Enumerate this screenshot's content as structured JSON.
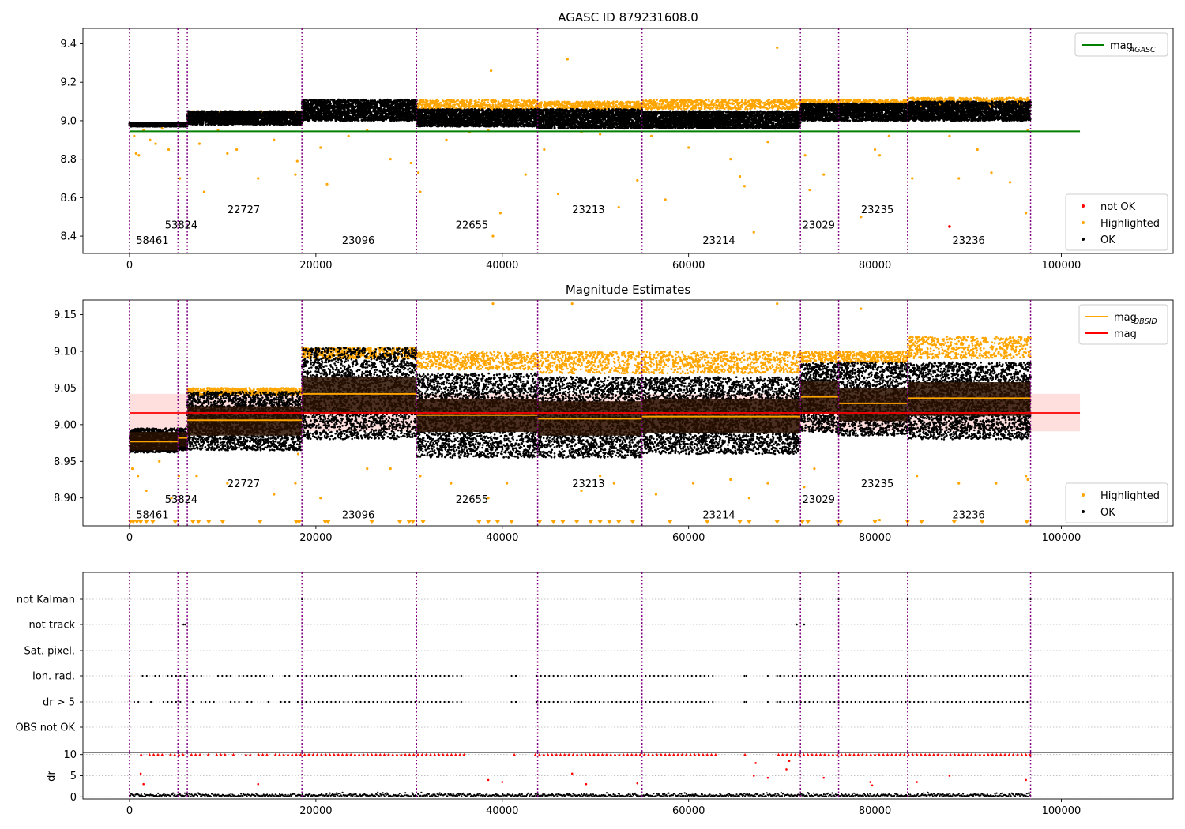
{
  "chart_data": [
    {
      "panel": "top",
      "type": "scatter",
      "title": "AGASC ID 879231608.0",
      "xlim": [
        -5000,
        112000
      ],
      "ylim": [
        8.31,
        9.48
      ],
      "xticks": [
        0,
        20000,
        40000,
        60000,
        80000,
        100000
      ],
      "yticks": [
        8.4,
        8.6,
        8.8,
        9.0,
        9.2,
        9.4
      ],
      "ytick_labels": [
        "8.4",
        "8.6",
        "8.8",
        "9.0",
        "9.2",
        "9.4"
      ],
      "mag_agasc": {
        "value": 8.945,
        "x_range": [
          0,
          102000
        ],
        "color": "#008000"
      },
      "legend_top": [
        {
          "label": "mag",
          "sub": "AGASC",
          "color": "#008000",
          "kind": "line"
        }
      ],
      "legend_bottom": [
        {
          "label": "not OK",
          "color": "#ff0000",
          "kind": "dot"
        },
        {
          "label": "Highlighted",
          "color": "#ffa500",
          "kind": "dot"
        },
        {
          "label": "OK",
          "color": "#000000",
          "kind": "dot"
        }
      ],
      "ok_band": [
        {
          "x0": 0,
          "x1": 5200,
          "lo": 8.97,
          "hi": 8.99
        },
        {
          "x0": 5200,
          "x1": 6200,
          "lo": 8.97,
          "hi": 8.99
        },
        {
          "x0": 6200,
          "x1": 18500,
          "lo": 8.98,
          "hi": 9.05
        },
        {
          "x0": 18500,
          "x1": 30800,
          "lo": 9.0,
          "hi": 9.11
        },
        {
          "x0": 30800,
          "x1": 43800,
          "lo": 8.97,
          "hi": 9.06
        },
        {
          "x0": 43800,
          "x1": 55000,
          "lo": 8.96,
          "hi": 9.06
        },
        {
          "x0": 55000,
          "x1": 72000,
          "lo": 8.96,
          "hi": 9.05
        },
        {
          "x0": 72000,
          "x1": 76100,
          "lo": 9.0,
          "hi": 9.09
        },
        {
          "x0": 76100,
          "x1": 83500,
          "lo": 9.0,
          "hi": 9.09
        },
        {
          "x0": 83500,
          "x1": 96700,
          "lo": 9.0,
          "hi": 9.1
        }
      ],
      "highlight_band": [
        {
          "x0": 6200,
          "x1": 18500,
          "lo": 9.02,
          "hi": 9.05
        },
        {
          "x0": 30800,
          "x1": 43800,
          "lo": 9.06,
          "hi": 9.11
        },
        {
          "x0": 43800,
          "x1": 55000,
          "lo": 9.06,
          "hi": 9.1
        },
        {
          "x0": 55000,
          "x1": 72000,
          "lo": 9.06,
          "hi": 9.11
        },
        {
          "x0": 72000,
          "x1": 83500,
          "lo": 9.07,
          "hi": 9.11
        },
        {
          "x0": 83500,
          "x1": 96700,
          "lo": 9.07,
          "hi": 9.12
        }
      ],
      "highlight_points": [
        [
          500,
          8.92
        ],
        [
          700,
          8.83
        ],
        [
          1000,
          8.82
        ],
        [
          1500,
          8.95
        ],
        [
          2200,
          8.9
        ],
        [
          2800,
          8.88
        ],
        [
          3500,
          8.96
        ],
        [
          4200,
          8.85
        ],
        [
          5400,
          8.7
        ],
        [
          7500,
          8.88
        ],
        [
          8000,
          8.63
        ],
        [
          9500,
          8.95
        ],
        [
          10500,
          8.83
        ],
        [
          11500,
          8.85
        ],
        [
          13800,
          8.7
        ],
        [
          15500,
          8.9
        ],
        [
          17800,
          8.72
        ],
        [
          18000,
          8.79
        ],
        [
          20500,
          8.86
        ],
        [
          21200,
          8.67
        ],
        [
          23500,
          8.92
        ],
        [
          25500,
          8.95
        ],
        [
          28000,
          8.8
        ],
        [
          30200,
          8.78
        ],
        [
          31000,
          8.73
        ],
        [
          31200,
          8.63
        ],
        [
          34000,
          8.9
        ],
        [
          36500,
          8.94
        ],
        [
          38500,
          8.95
        ],
        [
          38800,
          9.26
        ],
        [
          39800,
          8.52
        ],
        [
          39000,
          8.4
        ],
        [
          42500,
          8.72
        ],
        [
          44500,
          8.85
        ],
        [
          47000,
          9.32
        ],
        [
          46000,
          8.62
        ],
        [
          48500,
          8.94
        ],
        [
          50500,
          8.93
        ],
        [
          52500,
          8.55
        ],
        [
          54500,
          8.69
        ],
        [
          56000,
          8.92
        ],
        [
          57500,
          8.59
        ],
        [
          60000,
          8.86
        ],
        [
          64500,
          8.8
        ],
        [
          65500,
          8.71
        ],
        [
          66000,
          8.66
        ],
        [
          67000,
          8.42
        ],
        [
          68500,
          8.89
        ],
        [
          69500,
          9.38
        ],
        [
          72500,
          8.82
        ],
        [
          73000,
          8.64
        ],
        [
          74500,
          8.72
        ],
        [
          78500,
          8.5
        ],
        [
          80000,
          8.85
        ],
        [
          80500,
          8.82
        ],
        [
          81500,
          8.92
        ],
        [
          84000,
          8.7
        ],
        [
          88000,
          8.92
        ],
        [
          89000,
          8.7
        ],
        [
          91000,
          8.85
        ],
        [
          92500,
          8.73
        ],
        [
          94500,
          8.68
        ],
        [
          96200,
          8.52
        ],
        [
          96400,
          8.95
        ]
      ],
      "notok_points": [
        [
          88000,
          8.45
        ]
      ],
      "obsid_labels": [
        {
          "text": "58461",
          "x": 700,
          "y": 8.36
        },
        {
          "text": "53824",
          "x": 3800,
          "y": 8.44
        },
        {
          "text": "22727",
          "x": 10500,
          "y": 8.52
        },
        {
          "text": "23096",
          "x": 22800,
          "y": 8.36
        },
        {
          "text": "22655",
          "x": 35000,
          "y": 8.44
        },
        {
          "text": "23213",
          "x": 47500,
          "y": 8.52
        },
        {
          "text": "23214",
          "x": 61500,
          "y": 8.36
        },
        {
          "text": "23029",
          "x": 72200,
          "y": 8.44
        },
        {
          "text": "23235",
          "x": 78500,
          "y": 8.52
        },
        {
          "text": "23236",
          "x": 88300,
          "y": 8.36
        }
      ]
    },
    {
      "panel": "middle",
      "type": "scatter",
      "title": "Magnitude Estimates",
      "xlim": [
        -5000,
        112000
      ],
      "ylim": [
        8.862,
        9.17
      ],
      "xticks": [
        0,
        20000,
        40000,
        60000,
        80000,
        100000
      ],
      "yticks": [
        8.9,
        8.95,
        9.0,
        9.05,
        9.1,
        9.15
      ],
      "ytick_labels": [
        "8.90",
        "8.95",
        "9.00",
        "9.05",
        "9.10",
        "9.15"
      ],
      "mag": {
        "value": 9.016,
        "band": [
          8.991,
          9.042
        ],
        "x_range": [
          0,
          102000
        ],
        "color": "#ff0000"
      },
      "legend_top": [
        {
          "label": "mag",
          "sub": "OBSID",
          "color": "#ffa500",
          "kind": "line"
        },
        {
          "label": "mag",
          "sub": "",
          "color": "#ff0000",
          "kind": "line"
        }
      ],
      "legend_bottom": [
        {
          "label": "Highlighted",
          "color": "#ffa500",
          "kind": "dot"
        },
        {
          "label": "OK",
          "color": "#000000",
          "kind": "dot"
        }
      ],
      "obsid_segments": [
        {
          "x0": 0,
          "x1": 5200,
          "mean": 8.977,
          "lo": 8.965,
          "hi": 8.99,
          "ok_lo": 8.962,
          "ok_hi": 8.995
        },
        {
          "x0": 5200,
          "x1": 6200,
          "mean": 8.982,
          "lo": 8.97,
          "hi": 8.99,
          "ok_lo": 8.965,
          "ok_hi": 8.995
        },
        {
          "x0": 6200,
          "x1": 18500,
          "mean": 9.006,
          "lo": 8.985,
          "hi": 9.025,
          "ok_lo": 8.965,
          "ok_hi": 9.045
        },
        {
          "x0": 18500,
          "x1": 30800,
          "mean": 9.042,
          "lo": 9.015,
          "hi": 9.065,
          "ok_lo": 8.98,
          "ok_hi": 9.105
        },
        {
          "x0": 30800,
          "x1": 43800,
          "mean": 9.013,
          "lo": 8.99,
          "hi": 9.035,
          "ok_lo": 8.955,
          "ok_hi": 9.07
        },
        {
          "x0": 43800,
          "x1": 55000,
          "mean": 9.008,
          "lo": 8.985,
          "hi": 9.032,
          "ok_lo": 8.955,
          "ok_hi": 9.065
        },
        {
          "x0": 55000,
          "x1": 72000,
          "mean": 9.011,
          "lo": 8.988,
          "hi": 9.035,
          "ok_lo": 8.96,
          "ok_hi": 9.065
        },
        {
          "x0": 72000,
          "x1": 76100,
          "mean": 9.038,
          "lo": 9.015,
          "hi": 9.06,
          "ok_lo": 8.99,
          "ok_hi": 9.085
        },
        {
          "x0": 76100,
          "x1": 83500,
          "mean": 9.029,
          "lo": 9.005,
          "hi": 9.05,
          "ok_lo": 8.985,
          "ok_hi": 9.085
        },
        {
          "x0": 83500,
          "x1": 96700,
          "mean": 9.036,
          "lo": 9.012,
          "hi": 9.058,
          "ok_lo": 8.98,
          "ok_hi": 9.085
        }
      ],
      "highlight_band": [
        {
          "x0": 6200,
          "x1": 18500,
          "lo": 9.04,
          "hi": 9.05
        },
        {
          "x0": 18500,
          "x1": 30800,
          "lo": 9.09,
          "hi": 9.105
        },
        {
          "x0": 30800,
          "x1": 43800,
          "lo": 9.075,
          "hi": 9.1
        },
        {
          "x0": 43800,
          "x1": 55000,
          "lo": 9.07,
          "hi": 9.1
        },
        {
          "x0": 55000,
          "x1": 72000,
          "lo": 9.07,
          "hi": 9.1
        },
        {
          "x0": 72000,
          "x1": 83500,
          "lo": 9.085,
          "hi": 9.1
        },
        {
          "x0": 83500,
          "x1": 96700,
          "lo": 9.09,
          "hi": 9.12
        }
      ],
      "highlight_points": [
        [
          300,
          8.94
        ],
        [
          900,
          8.93
        ],
        [
          1800,
          8.91
        ],
        [
          3200,
          8.95
        ],
        [
          4500,
          8.9
        ],
        [
          5300,
          8.93
        ],
        [
          7200,
          8.93
        ],
        [
          10500,
          8.92
        ],
        [
          15500,
          8.905
        ],
        [
          17800,
          8.92
        ],
        [
          18100,
          8.96
        ],
        [
          20500,
          8.9
        ],
        [
          25500,
          8.94
        ],
        [
          28000,
          8.94
        ],
        [
          31200,
          8.93
        ],
        [
          34500,
          8.92
        ],
        [
          38500,
          8.9
        ],
        [
          39000,
          9.165
        ],
        [
          40500,
          8.92
        ],
        [
          47500,
          9.165
        ],
        [
          48500,
          8.91
        ],
        [
          50500,
          8.93
        ],
        [
          52000,
          8.92
        ],
        [
          56500,
          8.905
        ],
        [
          60500,
          8.92
        ],
        [
          64500,
          8.925
        ],
        [
          66500,
          8.9
        ],
        [
          68500,
          8.92
        ],
        [
          69500,
          9.165
        ],
        [
          72400,
          8.915
        ],
        [
          73500,
          8.94
        ],
        [
          78500,
          9.158
        ],
        [
          80500,
          8.87
        ],
        [
          84500,
          8.93
        ],
        [
          89000,
          8.92
        ],
        [
          93000,
          8.92
        ],
        [
          96200,
          8.93
        ],
        [
          96400,
          8.925
        ]
      ],
      "clipped_x": [
        100,
        400,
        800,
        1200,
        1800,
        2500,
        4900,
        6800,
        7400,
        8500,
        10000,
        14000,
        17900,
        18200,
        21000,
        21300,
        26000,
        29000,
        30000,
        30400,
        31500,
        37500,
        38500,
        39500,
        41000,
        44000,
        45500,
        46500,
        48000,
        49500,
        50500,
        51500,
        52500,
        54000,
        58000,
        62000,
        65500,
        66500,
        69500,
        72200,
        72800,
        76000,
        76300,
        80000,
        83500,
        85000,
        88500,
        91500,
        96300
      ],
      "obsid_labels": [
        {
          "text": "58461",
          "x": 700,
          "y": 8.872
        },
        {
          "text": "53824",
          "x": 3800,
          "y": 8.893
        },
        {
          "text": "22727",
          "x": 10500,
          "y": 8.915
        },
        {
          "text": "23096",
          "x": 22800,
          "y": 8.872
        },
        {
          "text": "22655",
          "x": 35000,
          "y": 8.893
        },
        {
          "text": "23213",
          "x": 47500,
          "y": 8.915
        },
        {
          "text": "23214",
          "x": 61500,
          "y": 8.872
        },
        {
          "text": "23029",
          "x": 72200,
          "y": 8.893
        },
        {
          "text": "23235",
          "x": 78500,
          "y": 8.915
        },
        {
          "text": "23236",
          "x": 88300,
          "y": 8.872
        }
      ]
    },
    {
      "panel": "flags",
      "type": "scatter",
      "xlim": [
        -5000,
        112000
      ],
      "categories": [
        "not Kalman",
        "not track",
        "Sat. pixel.",
        "Ion. rad.",
        "dr > 5",
        "OBS not OK"
      ],
      "flag_points": {
        "not Kalman": [
          18500,
          72000,
          76100,
          83500,
          96700
        ],
        "not track": [
          5800,
          6000,
          71600,
          72400
        ],
        "Sat. pixel.": [],
        "Ion. rad.": "dense",
        "dr > 5": "dense",
        "OBS not OK": []
      },
      "flag_gaps": [
        [
          36000,
          41000
        ],
        [
          41500,
          43500
        ],
        [
          63000,
          66000
        ],
        [
          66200,
          68500
        ],
        [
          68700,
          69500
        ]
      ],
      "flag_isolated": [
        41500,
        66000,
        68500,
        69500
      ]
    },
    {
      "panel": "dr",
      "type": "scatter",
      "ylabel": "dr",
      "xlim": [
        -5000,
        112000
      ],
      "ylim": [
        -0.5,
        10.5
      ],
      "yticks": [
        0,
        5,
        10
      ],
      "xticks": [
        0,
        20000,
        40000,
        60000,
        80000,
        100000
      ],
      "xtick_labels": [
        "0",
        "20000",
        "40000",
        "60000",
        "80000",
        "100000"
      ],
      "dr_band": [
        0.0,
        1.6
      ],
      "notok_scatter": [
        [
          1200,
          5.5
        ],
        [
          1500,
          3.0
        ],
        [
          13800,
          3.0
        ],
        [
          38500,
          4.0
        ],
        [
          40000,
          3.5
        ],
        [
          47500,
          5.5
        ],
        [
          49000,
          3.0
        ],
        [
          54500,
          3.2
        ],
        [
          67000,
          5.0
        ],
        [
          67200,
          8.0
        ],
        [
          68500,
          4.5
        ],
        [
          70500,
          6.5
        ],
        [
          70800,
          8.5
        ],
        [
          74500,
          4.5
        ],
        [
          79500,
          3.5
        ],
        [
          79700,
          2.7
        ],
        [
          84500,
          3.5
        ],
        [
          88000,
          5.0
        ],
        [
          96200,
          4.0
        ]
      ]
    }
  ],
  "obsid_boundaries": [
    0,
    5200,
    6200,
    18500,
    30800,
    43800,
    55000,
    72000,
    76100,
    83500,
    96700
  ],
  "colors": {
    "ok": "#000000",
    "highlighted": "#ffa500",
    "not_ok": "#ff0000",
    "boundary": "#800080",
    "agasc": "#008000"
  }
}
